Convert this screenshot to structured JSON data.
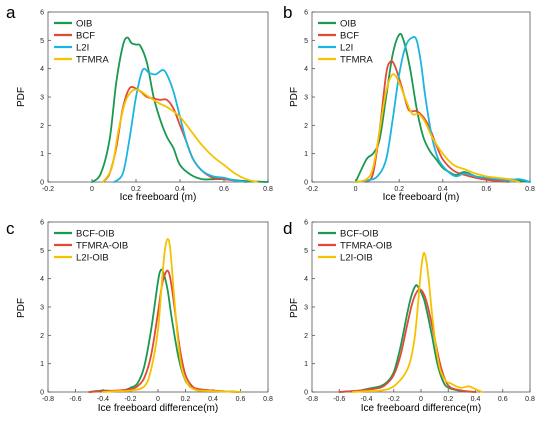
{
  "panels": [
    {
      "letter": "a",
      "ylabel": "PDF",
      "xlabel": "Ice freeboard (m)"
    },
    {
      "letter": "b",
      "ylabel": "PDF",
      "xlabel": "Ice freeboard (m)"
    },
    {
      "letter": "c",
      "ylabel": "PDF",
      "xlabel": "Ice freeboard difference(m)"
    },
    {
      "letter": "d",
      "ylabel": "PDF",
      "xlabel": "Ice freeboard difference(m)"
    }
  ],
  "chart_data": [
    {
      "type": "line",
      "panel": "a",
      "xlabel": "Ice freeboard (m)",
      "ylabel": "PDF",
      "xlim": [
        -0.2,
        0.8
      ],
      "ylim": [
        0,
        6
      ],
      "xticks": [
        "-0.2",
        "0",
        "0.2",
        "0.4",
        "0.6",
        "0.8"
      ],
      "yticks": [
        "0",
        "1",
        "2",
        "3",
        "4",
        "5",
        "6"
      ],
      "legend_position": "top-left",
      "series": [
        {
          "name": "OIB",
          "color": "#1a9850",
          "x": [
            0.0,
            0.04,
            0.08,
            0.11,
            0.14,
            0.16,
            0.18,
            0.2,
            0.22,
            0.25,
            0.28,
            0.31,
            0.34,
            0.37,
            0.4,
            0.45,
            0.5,
            0.55,
            0.6,
            0.7,
            0.8
          ],
          "y": [
            0.0,
            0.3,
            1.5,
            3.5,
            4.8,
            5.1,
            4.9,
            4.85,
            4.8,
            4.2,
            3.0,
            2.2,
            1.6,
            1.2,
            0.6,
            0.25,
            0.1,
            0.1,
            0.1,
            0.03,
            0.0
          ]
        },
        {
          "name": "BCF",
          "color": "#e34a33",
          "x": [
            0.05,
            0.08,
            0.11,
            0.14,
            0.17,
            0.2,
            0.22,
            0.25,
            0.28,
            0.31,
            0.34,
            0.37,
            0.4,
            0.43,
            0.46,
            0.5,
            0.55,
            0.6,
            0.65,
            0.7
          ],
          "y": [
            0.0,
            0.3,
            1.2,
            2.6,
            3.3,
            3.3,
            3.2,
            3.0,
            2.95,
            2.9,
            2.9,
            2.6,
            2.0,
            1.4,
            0.8,
            0.4,
            0.15,
            0.1,
            0.05,
            0.0
          ]
        },
        {
          "name": "L2I",
          "color": "#1cb5e0",
          "x": [
            0.1,
            0.14,
            0.17,
            0.2,
            0.23,
            0.26,
            0.29,
            0.32,
            0.34,
            0.37,
            0.4,
            0.43,
            0.46,
            0.5,
            0.55,
            0.6,
            0.65,
            0.7
          ],
          "y": [
            0.0,
            0.3,
            1.5,
            3.0,
            3.95,
            3.85,
            3.8,
            3.95,
            3.8,
            3.2,
            2.3,
            1.4,
            0.8,
            0.4,
            0.2,
            0.15,
            0.05,
            0.0
          ]
        },
        {
          "name": "TFMRA",
          "color": "#f5c200",
          "x": [
            0.05,
            0.09,
            0.12,
            0.15,
            0.18,
            0.21,
            0.25,
            0.3,
            0.35,
            0.4,
            0.45,
            0.5,
            0.55,
            0.6,
            0.65,
            0.7,
            0.75
          ],
          "y": [
            0.0,
            0.5,
            1.8,
            2.8,
            3.2,
            3.25,
            3.05,
            2.8,
            2.6,
            2.3,
            1.8,
            1.3,
            0.9,
            0.6,
            0.3,
            0.1,
            0.0
          ]
        }
      ]
    },
    {
      "type": "line",
      "panel": "b",
      "xlabel": "Ice freeboard (m)",
      "ylabel": "PDF",
      "xlim": [
        -0.2,
        0.8
      ],
      "ylim": [
        0,
        6
      ],
      "xticks": [
        "-0.2",
        "0",
        "0.2",
        "0.4",
        "0.6",
        "0.8"
      ],
      "yticks": [
        "0",
        "1",
        "2",
        "3",
        "4",
        "5",
        "6"
      ],
      "legend_position": "top-left",
      "series": [
        {
          "name": "OIB",
          "color": "#1a9850",
          "x": [
            0.0,
            0.05,
            0.08,
            0.11,
            0.14,
            0.17,
            0.2,
            0.22,
            0.25,
            0.28,
            0.31,
            0.34,
            0.37,
            0.4,
            0.43,
            0.46,
            0.5,
            0.55,
            0.6,
            0.65,
            0.7,
            0.8
          ],
          "y": [
            0.0,
            0.8,
            1.0,
            1.5,
            3.0,
            4.5,
            5.2,
            5.0,
            4.0,
            2.6,
            1.6,
            1.1,
            0.8,
            0.5,
            0.35,
            0.25,
            0.35,
            0.2,
            0.1,
            0.05,
            0.1,
            0.0
          ]
        },
        {
          "name": "BCF",
          "color": "#e34a33",
          "x": [
            0.05,
            0.08,
            0.11,
            0.14,
            0.16,
            0.18,
            0.21,
            0.24,
            0.26,
            0.28,
            0.31,
            0.34,
            0.37,
            0.4,
            0.45,
            0.5,
            0.55,
            0.6,
            0.7
          ],
          "y": [
            0.0,
            0.3,
            1.8,
            3.8,
            4.25,
            4.1,
            3.4,
            2.6,
            2.5,
            2.5,
            2.3,
            1.9,
            1.3,
            0.8,
            0.4,
            0.25,
            0.15,
            0.08,
            0.0
          ]
        },
        {
          "name": "L2I",
          "color": "#1cb5e0",
          "x": [
            0.0,
            0.05,
            0.1,
            0.14,
            0.17,
            0.2,
            0.23,
            0.26,
            0.28,
            0.3,
            0.32,
            0.35,
            0.38,
            0.42,
            0.46,
            0.5,
            0.55,
            0.6,
            0.65,
            0.7,
            0.75,
            0.8
          ],
          "y": [
            0.0,
            0.05,
            0.2,
            0.8,
            2.2,
            3.8,
            4.8,
            5.1,
            5.0,
            4.2,
            3.0,
            1.6,
            0.8,
            0.4,
            0.2,
            0.3,
            0.2,
            0.15,
            0.1,
            0.05,
            0.1,
            0.0
          ]
        },
        {
          "name": "TFMRA",
          "color": "#f5c200",
          "x": [
            0.0,
            0.05,
            0.08,
            0.11,
            0.14,
            0.17,
            0.2,
            0.23,
            0.26,
            0.29,
            0.32,
            0.35,
            0.4,
            0.45,
            0.5,
            0.55,
            0.6,
            0.65,
            0.7,
            0.75
          ],
          "y": [
            0.0,
            0.1,
            0.5,
            1.8,
            3.2,
            3.8,
            3.5,
            2.9,
            2.4,
            2.4,
            2.1,
            1.6,
            1.0,
            0.6,
            0.45,
            0.3,
            0.2,
            0.15,
            0.1,
            0.0
          ]
        }
      ]
    },
    {
      "type": "line",
      "panel": "c",
      "xlabel": "Ice freeboard difference(m)",
      "ylabel": "PDF",
      "xlim": [
        -0.8,
        0.8
      ],
      "ylim": [
        0,
        6
      ],
      "xticks": [
        "-0.8",
        "-0.6",
        "-0.4",
        "-0.2",
        "0",
        "0.2",
        "0.4",
        "0.6",
        "0.8"
      ],
      "yticks": [
        "0",
        "1",
        "2",
        "3",
        "4",
        "5",
        "6"
      ],
      "legend_position": "top-left",
      "series": [
        {
          "name": "BCF-OIB",
          "color": "#1a9850",
          "x": [
            -0.5,
            -0.4,
            -0.3,
            -0.25,
            -0.2,
            -0.15,
            -0.1,
            -0.05,
            0.0,
            0.02,
            0.04,
            0.07,
            0.1,
            0.15,
            0.2,
            0.25,
            0.3,
            0.4,
            0.5,
            0.6
          ],
          "y": [
            0.0,
            0.05,
            0.03,
            0.05,
            0.15,
            0.3,
            0.9,
            2.2,
            3.9,
            4.3,
            4.2,
            3.6,
            2.6,
            1.2,
            0.4,
            0.15,
            0.05,
            0.03,
            0.02,
            0.0
          ]
        },
        {
          "name": "TFMRA-OIB",
          "color": "#e34a33",
          "x": [
            -0.5,
            -0.4,
            -0.3,
            -0.2,
            -0.15,
            -0.1,
            -0.05,
            0.0,
            0.03,
            0.06,
            0.08,
            0.1,
            0.13,
            0.16,
            0.2,
            0.25,
            0.3,
            0.4,
            0.5,
            0.6
          ],
          "y": [
            0.0,
            0.03,
            0.05,
            0.1,
            0.2,
            0.5,
            1.3,
            2.8,
            3.8,
            4.25,
            4.2,
            3.7,
            2.6,
            1.5,
            0.6,
            0.2,
            0.1,
            0.05,
            0.02,
            0.0
          ]
        },
        {
          "name": "L2I-OIB",
          "color": "#f5c200",
          "x": [
            -0.4,
            -0.3,
            -0.2,
            -0.1,
            -0.05,
            0.0,
            0.03,
            0.05,
            0.07,
            0.09,
            0.12,
            0.15,
            0.18,
            0.22,
            0.26,
            0.3,
            0.4,
            0.5,
            0.6
          ],
          "y": [
            0.0,
            0.03,
            0.05,
            0.2,
            0.8,
            2.2,
            4.0,
            5.0,
            5.4,
            5.0,
            3.2,
            1.6,
            0.7,
            0.25,
            0.1,
            0.05,
            0.03,
            0.02,
            0.0
          ]
        }
      ]
    },
    {
      "type": "line",
      "panel": "d",
      "xlabel": "Ice freeboard difference(m)",
      "ylabel": "PDF",
      "xlim": [
        -0.8,
        0.8
      ],
      "ylim": [
        0,
        6
      ],
      "xticks": [
        "-0.8",
        "-0.6",
        "-0.4",
        "-0.2",
        "0",
        "0.2",
        "0.4",
        "0.6",
        "0.8"
      ],
      "yticks": [
        "0",
        "1",
        "2",
        "3",
        "4",
        "5",
        "6"
      ],
      "legend_position": "top-left",
      "series": [
        {
          "name": "BCF-OIB",
          "color": "#1a9850",
          "x": [
            -0.6,
            -0.5,
            -0.45,
            -0.4,
            -0.35,
            -0.3,
            -0.25,
            -0.2,
            -0.15,
            -0.1,
            -0.07,
            -0.04,
            -0.02,
            0.02,
            0.05,
            0.08,
            0.12,
            0.16,
            0.2,
            0.3,
            0.4
          ],
          "y": [
            0.0,
            0.03,
            0.05,
            0.1,
            0.15,
            0.2,
            0.35,
            0.7,
            1.6,
            2.8,
            3.4,
            3.75,
            3.7,
            3.3,
            2.7,
            2.0,
            1.0,
            0.4,
            0.15,
            0.03,
            0.0
          ]
        },
        {
          "name": "TFMRA-OIB",
          "color": "#e34a33",
          "x": [
            -0.6,
            -0.5,
            -0.4,
            -0.3,
            -0.25,
            -0.2,
            -0.15,
            -0.1,
            -0.06,
            -0.02,
            0.01,
            0.04,
            0.07,
            0.1,
            0.14,
            0.18,
            0.22,
            0.3,
            0.4
          ],
          "y": [
            0.0,
            0.03,
            0.08,
            0.15,
            0.3,
            0.6,
            1.3,
            2.4,
            3.2,
            3.6,
            3.55,
            3.2,
            2.6,
            1.9,
            1.0,
            0.4,
            0.15,
            0.05,
            0.0
          ]
        },
        {
          "name": "L2I-OIB",
          "color": "#f5c200",
          "x": [
            -0.5,
            -0.4,
            -0.3,
            -0.2,
            -0.1,
            -0.05,
            -0.02,
            0.0,
            0.02,
            0.04,
            0.06,
            0.08,
            0.11,
            0.14,
            0.18,
            0.22,
            0.26,
            0.3,
            0.35,
            0.4,
            0.45
          ],
          "y": [
            0.0,
            0.03,
            0.05,
            0.2,
            0.8,
            1.8,
            3.2,
            4.3,
            4.9,
            4.6,
            3.8,
            2.8,
            1.6,
            0.8,
            0.4,
            0.3,
            0.2,
            0.15,
            0.2,
            0.1,
            0.0
          ]
        }
      ]
    }
  ]
}
